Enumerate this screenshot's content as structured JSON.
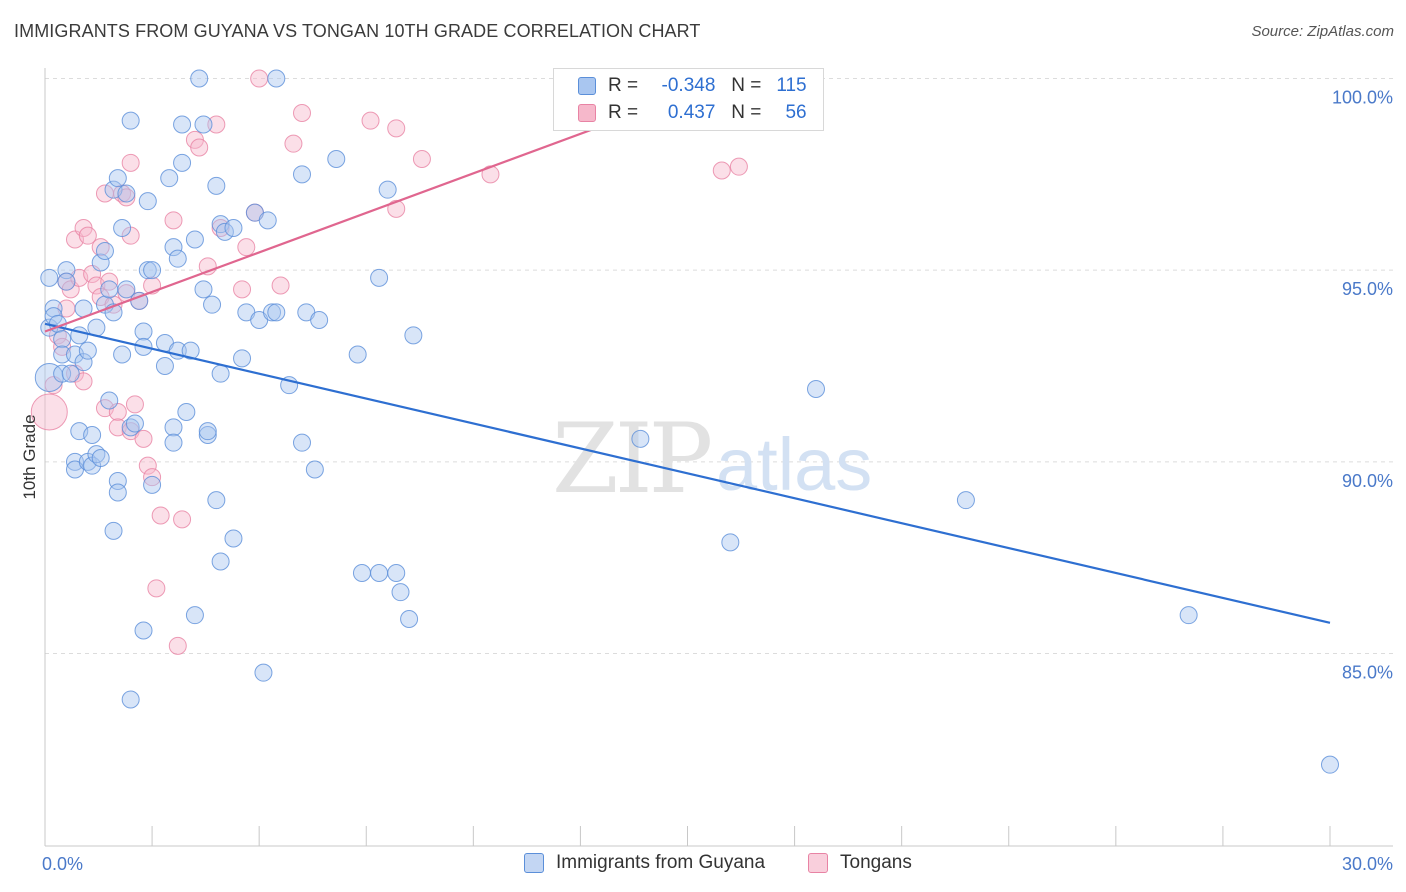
{
  "header": {
    "title": "IMMIGRANTS FROM GUYANA VS TONGAN 10TH GRADE CORRELATION CHART",
    "source": "Source: ZipAtlas.com"
  },
  "watermark": {
    "zip": "ZIP",
    "atlas": "atlas"
  },
  "colors": {
    "blue_fill": "#a9c6f0",
    "blue_stroke": "#5b8fd9",
    "blue_line": "#2e6fd1",
    "pink_fill": "#f6b8cb",
    "pink_stroke": "#e883a4",
    "pink_line": "#e0668f",
    "grid": "#dcdcdc",
    "tick_text": "#4a79c9"
  },
  "legend": {
    "rows": [
      {
        "r_label": "R =",
        "r_value": "-0.348",
        "n_label": "N =",
        "n_value": "115"
      },
      {
        "r_label": "R =",
        "r_value": "0.437",
        "n_label": "N =",
        "n_value": "56"
      }
    ]
  },
  "bottom_legend": {
    "series1": "Immigrants from Guyana",
    "series2": "Tongans"
  },
  "chart_data": {
    "type": "scatter",
    "title": "IMMIGRANTS FROM GUYANA VS TONGAN 10TH GRADE CORRELATION CHART",
    "xlabel": "",
    "ylabel": "10th Grade",
    "xlim": [
      0,
      30
    ],
    "ylim": [
      80.5,
      100.6
    ],
    "x_tick_labels": [
      "0.0%",
      "30.0%"
    ],
    "y_ticks": [
      85,
      90,
      95,
      100
    ],
    "y_tick_labels": [
      "85.0%",
      "90.0%",
      "95.0%",
      "100.0%"
    ],
    "grid": true,
    "legend_position": "top-center",
    "series": [
      {
        "name": "Immigrants from Guyana",
        "R": -0.348,
        "N": 115,
        "trend": {
          "x": [
            0,
            30
          ],
          "y": [
            93.6,
            85.8
          ]
        },
        "points": [
          [
            0.1,
            94.8
          ],
          [
            0.1,
            93.5
          ],
          [
            0.1,
            92.2
          ],
          [
            0.2,
            94.0
          ],
          [
            0.2,
            93.8
          ],
          [
            0.3,
            93.6
          ],
          [
            0.4,
            93.2
          ],
          [
            0.4,
            92.8
          ],
          [
            0.4,
            92.3
          ],
          [
            0.5,
            95.0
          ],
          [
            0.5,
            94.7
          ],
          [
            0.6,
            92.3
          ],
          [
            0.7,
            92.8
          ],
          [
            0.7,
            90.0
          ],
          [
            0.7,
            89.8
          ],
          [
            0.8,
            90.8
          ],
          [
            0.8,
            93.3
          ],
          [
            0.9,
            94.0
          ],
          [
            0.9,
            92.6
          ],
          [
            1.0,
            92.9
          ],
          [
            1.0,
            90.0
          ],
          [
            1.1,
            90.7
          ],
          [
            1.1,
            89.9
          ],
          [
            1.2,
            93.5
          ],
          [
            1.2,
            90.2
          ],
          [
            1.3,
            90.1
          ],
          [
            1.3,
            95.2
          ],
          [
            1.4,
            95.5
          ],
          [
            1.4,
            94.1
          ],
          [
            1.5,
            91.6
          ],
          [
            1.5,
            94.5
          ],
          [
            1.6,
            93.9
          ],
          [
            1.6,
            88.2
          ],
          [
            1.6,
            97.1
          ],
          [
            1.7,
            97.4
          ],
          [
            1.7,
            89.5
          ],
          [
            1.7,
            89.2
          ],
          [
            1.8,
            96.1
          ],
          [
            1.8,
            92.8
          ],
          [
            1.9,
            97.0
          ],
          [
            1.9,
            94.5
          ],
          [
            2.0,
            98.9
          ],
          [
            2.0,
            90.9
          ],
          [
            2.0,
            83.8
          ],
          [
            2.1,
            91.0
          ],
          [
            2.2,
            94.2
          ],
          [
            2.3,
            93.4
          ],
          [
            2.3,
            93.0
          ],
          [
            2.3,
            85.6
          ],
          [
            2.4,
            95.0
          ],
          [
            2.4,
            96.8
          ],
          [
            2.5,
            95.0
          ],
          [
            2.5,
            89.4
          ],
          [
            2.8,
            92.5
          ],
          [
            2.8,
            93.1
          ],
          [
            2.9,
            97.4
          ],
          [
            3.0,
            90.9
          ],
          [
            3.0,
            95.6
          ],
          [
            3.0,
            90.5
          ],
          [
            3.1,
            92.9
          ],
          [
            3.1,
            95.3
          ],
          [
            3.2,
            98.8
          ],
          [
            3.2,
            97.8
          ],
          [
            3.3,
            91.3
          ],
          [
            3.4,
            92.9
          ],
          [
            3.5,
            86.0
          ],
          [
            3.5,
            95.8
          ],
          [
            3.6,
            100.0
          ],
          [
            3.7,
            98.8
          ],
          [
            3.7,
            94.5
          ],
          [
            3.8,
            90.7
          ],
          [
            3.8,
            90.8
          ],
          [
            3.9,
            94.1
          ],
          [
            4.0,
            89.0
          ],
          [
            4.0,
            97.2
          ],
          [
            4.1,
            96.2
          ],
          [
            4.1,
            87.4
          ],
          [
            4.1,
            92.3
          ],
          [
            4.2,
            96.0
          ],
          [
            4.4,
            96.1
          ],
          [
            4.4,
            88.0
          ],
          [
            4.6,
            92.7
          ],
          [
            4.7,
            93.9
          ],
          [
            4.9,
            96.5
          ],
          [
            5.0,
            93.7
          ],
          [
            5.1,
            84.5
          ],
          [
            5.2,
            96.3
          ],
          [
            5.3,
            93.9
          ],
          [
            5.4,
            93.9
          ],
          [
            5.4,
            100.0
          ],
          [
            5.7,
            92.0
          ],
          [
            6.0,
            97.5
          ],
          [
            6.0,
            90.5
          ],
          [
            6.1,
            93.9
          ],
          [
            6.3,
            89.8
          ],
          [
            6.4,
            93.7
          ],
          [
            6.8,
            97.9
          ],
          [
            7.3,
            92.8
          ],
          [
            7.4,
            87.1
          ],
          [
            7.8,
            94.8
          ],
          [
            7.8,
            87.1
          ],
          [
            8.0,
            97.1
          ],
          [
            8.2,
            87.1
          ],
          [
            8.3,
            86.6
          ],
          [
            8.5,
            85.9
          ],
          [
            8.6,
            93.3
          ],
          [
            13.9,
            90.6
          ],
          [
            16.0,
            87.9
          ],
          [
            18.0,
            91.9
          ],
          [
            21.5,
            89.0
          ],
          [
            26.7,
            86.0
          ],
          [
            30.0,
            82.1
          ]
        ]
      },
      {
        "name": "Tongans",
        "R": 0.437,
        "N": 56,
        "trend": {
          "x": [
            0.0,
            16.0
          ],
          "y": [
            93.4,
            100.0
          ]
        },
        "points": [
          [
            0.1,
            91.3
          ],
          [
            0.2,
            92.0
          ],
          [
            0.3,
            93.3
          ],
          [
            0.4,
            93.0
          ],
          [
            0.5,
            94.0
          ],
          [
            0.5,
            94.7
          ],
          [
            0.6,
            94.5
          ],
          [
            0.7,
            92.3
          ],
          [
            0.7,
            95.8
          ],
          [
            0.8,
            94.8
          ],
          [
            0.9,
            92.1
          ],
          [
            0.9,
            96.1
          ],
          [
            1.0,
            95.9
          ],
          [
            1.1,
            94.9
          ],
          [
            1.2,
            94.6
          ],
          [
            1.3,
            95.6
          ],
          [
            1.3,
            94.3
          ],
          [
            1.4,
            97.0
          ],
          [
            1.4,
            91.4
          ],
          [
            1.5,
            94.7
          ],
          [
            1.6,
            94.1
          ],
          [
            1.7,
            91.3
          ],
          [
            1.7,
            90.9
          ],
          [
            1.8,
            97.0
          ],
          [
            1.9,
            94.4
          ],
          [
            1.9,
            96.9
          ],
          [
            2.0,
            97.8
          ],
          [
            2.0,
            95.9
          ],
          [
            2.0,
            90.8
          ],
          [
            2.1,
            91.5
          ],
          [
            2.2,
            94.2
          ],
          [
            2.3,
            90.6
          ],
          [
            2.4,
            89.9
          ],
          [
            2.5,
            94.6
          ],
          [
            2.5,
            89.6
          ],
          [
            2.6,
            86.7
          ],
          [
            2.7,
            88.6
          ],
          [
            3.0,
            96.3
          ],
          [
            3.1,
            85.2
          ],
          [
            3.2,
            88.5
          ],
          [
            3.5,
            98.4
          ],
          [
            3.6,
            98.2
          ],
          [
            3.8,
            95.1
          ],
          [
            4.0,
            98.8
          ],
          [
            4.1,
            96.1
          ],
          [
            4.6,
            94.5
          ],
          [
            4.7,
            95.6
          ],
          [
            4.9,
            96.5
          ],
          [
            5.0,
            100.0
          ],
          [
            5.5,
            94.6
          ],
          [
            5.8,
            98.3
          ],
          [
            6.0,
            99.1
          ],
          [
            7.6,
            98.9
          ],
          [
            8.2,
            96.6
          ],
          [
            8.2,
            98.7
          ],
          [
            8.8,
            97.9
          ],
          [
            10.4,
            97.5
          ],
          [
            15.8,
            97.6
          ],
          [
            16.2,
            97.7
          ]
        ]
      }
    ]
  }
}
